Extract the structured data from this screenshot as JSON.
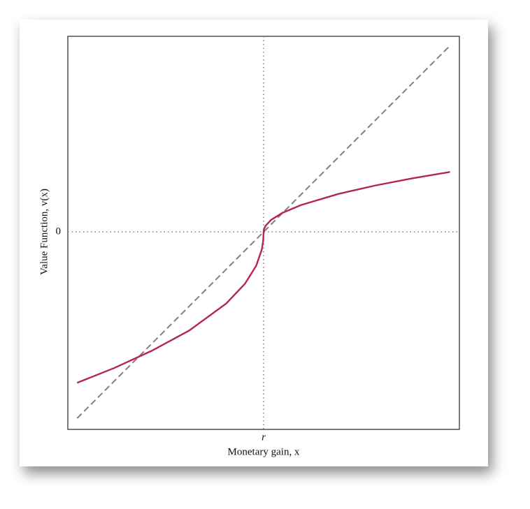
{
  "chart_data": {
    "type": "line",
    "x_label": "Monetary gain, x",
    "y_label": "Value Function, v(x)",
    "x": [
      -5,
      -4,
      -3,
      -2,
      -1,
      -0.5,
      -0.2,
      -0.05,
      -0.01,
      0,
      0.01,
      0.05,
      0.2,
      0.5,
      1,
      2,
      3,
      4,
      5
    ],
    "series": [
      {
        "color": "#b5264f",
        "style": "solid",
        "values": [
          -4.05,
          -3.65,
          -3.19,
          -2.65,
          -1.92,
          -1.39,
          -0.91,
          -0.48,
          -0.23,
          0,
          0.072,
          0.161,
          0.322,
          0.509,
          0.72,
          1.018,
          1.247,
          1.44,
          1.61
        ]
      },
      {
        "color": "#808080",
        "style": "dashed",
        "values": [
          -5,
          -4,
          -3,
          -2,
          -1,
          -0.5,
          -0.2,
          -0.05,
          -0.01,
          0,
          0.01,
          0.05,
          0.2,
          0.5,
          1,
          2,
          3,
          4,
          5
        ]
      }
    ],
    "xlim": [
      -5.25,
      5.25
    ],
    "ylim": [
      -5.3,
      5.25
    ],
    "xticks": [
      {
        "value": 0,
        "label": "r"
      }
    ],
    "yticks": [
      0
    ],
    "grid": true
  }
}
